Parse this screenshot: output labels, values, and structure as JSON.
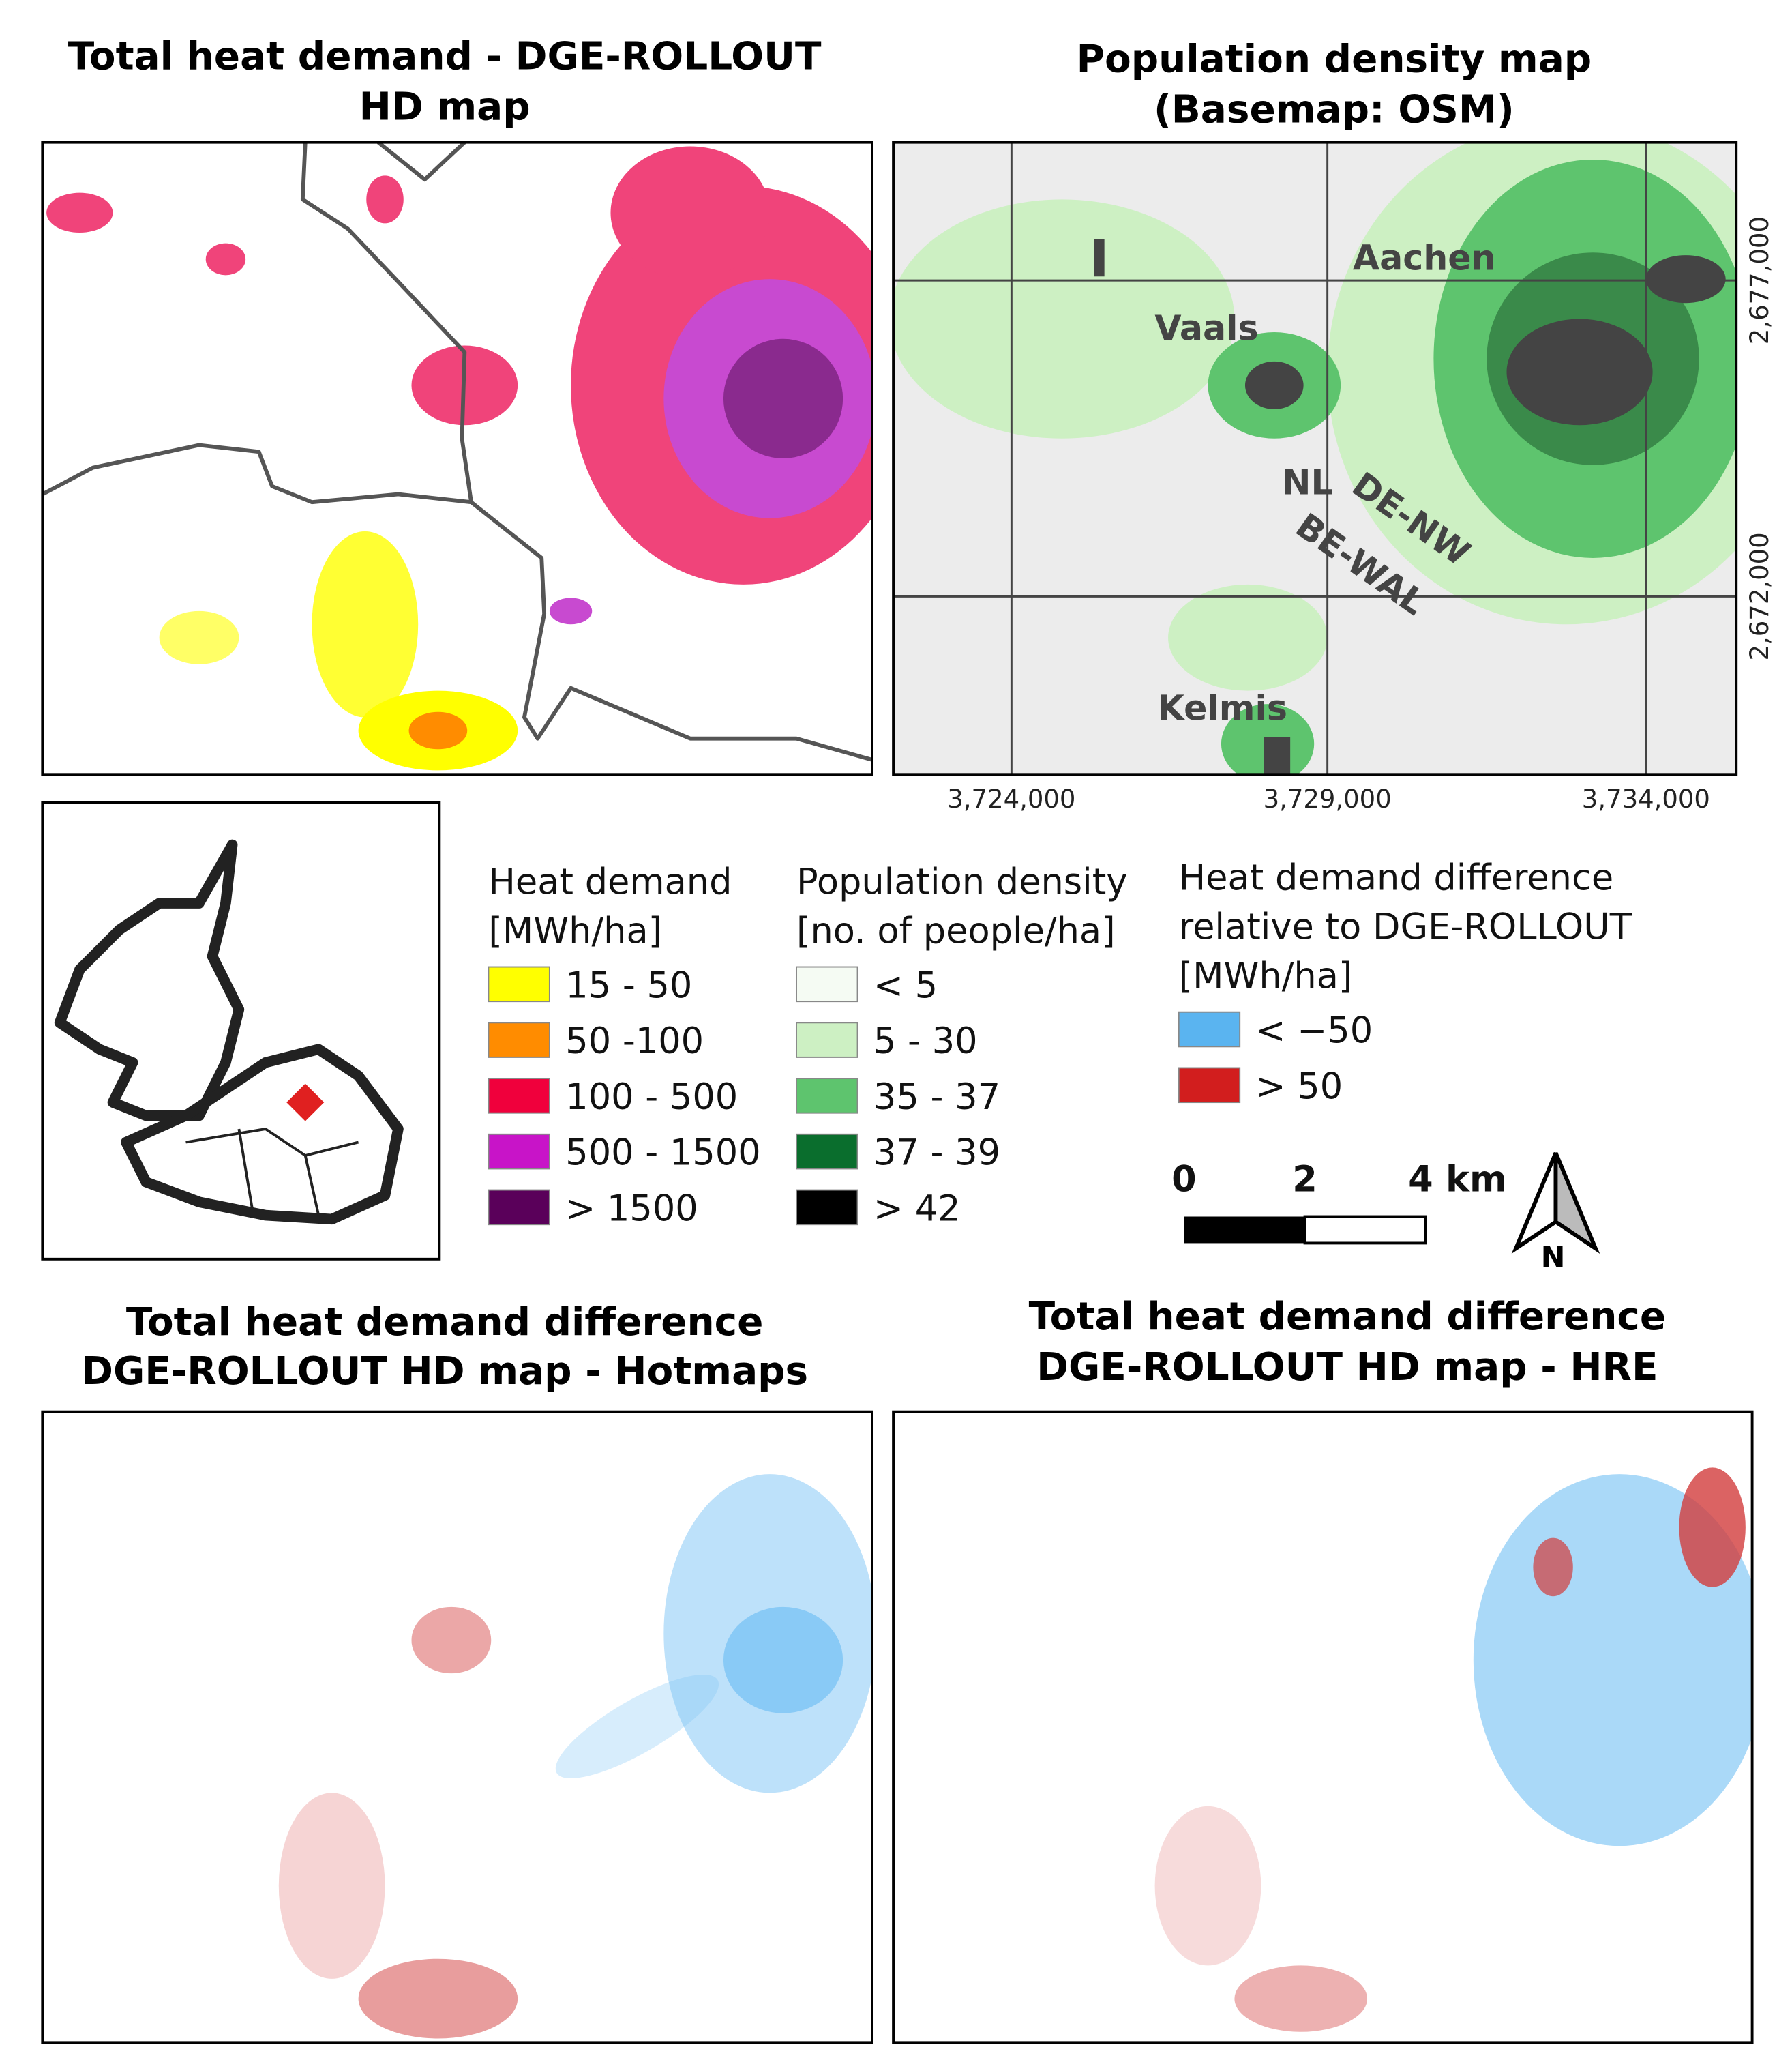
{
  "panels": [
    {
      "title": [
        "Total heat demand - DGE-ROLLOUT",
        "HD map"
      ]
    },
    {
      "title": [
        "Population density map",
        "(Basemap: OSM)"
      ]
    },
    {
      "title": [
        "Total heat demand difference",
        "DGE-ROLLOUT HD map - Hotmaps"
      ]
    },
    {
      "title": [
        "Total heat demand difference",
        "DGE-ROLLOUT HD map - HRE"
      ]
    }
  ],
  "population_map": {
    "places": [
      "Aachen",
      "Vaals",
      "NL",
      "DE-NW",
      "BE-WAL",
      "Kelmis"
    ],
    "x_ticks": [
      "3,724,000",
      "3,729,000",
      "3,734,000"
    ],
    "y_ticks": [
      "2,677,000",
      "2,672,000"
    ]
  },
  "legends": [
    {
      "title": [
        "Heat demand",
        "[MWh/ha]"
      ],
      "entries": [
        {
          "label": "15 - 50",
          "color": "#ffff00"
        },
        {
          "label": "50 -100",
          "color": "#ff8c00"
        },
        {
          "label": "100 - 500",
          "color": "#f0003c"
        },
        {
          "label": "500 - 1500",
          "color": "#c814c8"
        },
        {
          "label": "> 1500",
          "color": "#5a005a"
        }
      ]
    },
    {
      "title": [
        "Population density",
        "[no. of people/ha]"
      ],
      "entries": [
        {
          "label": "< 5",
          "color": "#f5fbf3"
        },
        {
          "label": "5 - 30",
          "color": "#cdf0c3"
        },
        {
          "label": "35 - 37",
          "color": "#5ec46e"
        },
        {
          "label": "37 - 39",
          "color": "#0a6e2d"
        },
        {
          "label": "> 42",
          "color": "#000000"
        }
      ]
    },
    {
      "title": [
        "Heat demand difference",
        "relative to DGE-ROLLOUT",
        "[MWh/ha]"
      ],
      "entries": [
        {
          "label": "< −50",
          "color": "#5ab4f0"
        },
        {
          "label": "> 50",
          "color": "#d21e1e"
        }
      ]
    }
  ],
  "scale_bar": {
    "labels": [
      "0",
      "2",
      "4 km"
    ]
  },
  "north": "N"
}
